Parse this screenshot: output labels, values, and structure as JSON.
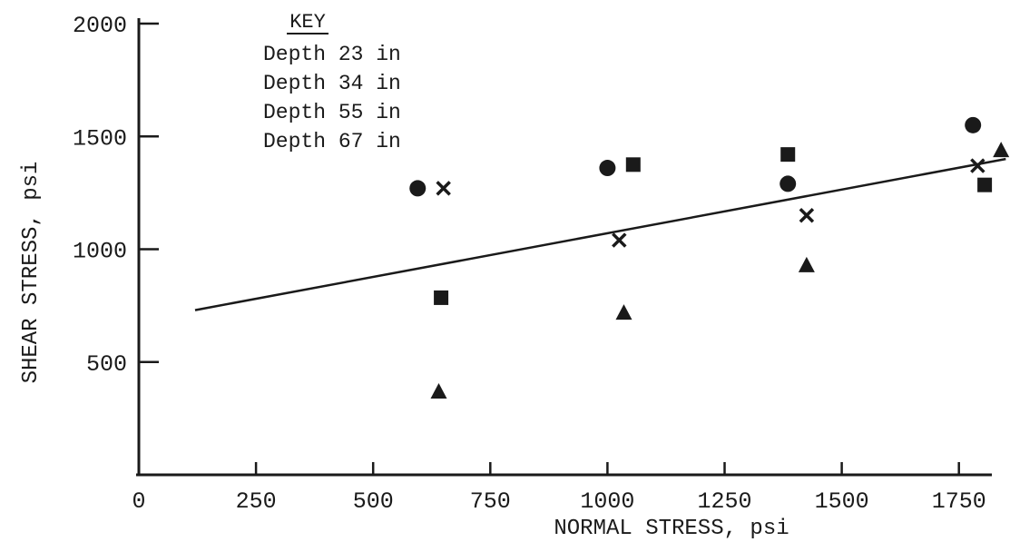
{
  "chart_data": {
    "type": "scatter",
    "title": "",
    "xlabel": "NORMAL STRESS, psi",
    "ylabel": "SHEAR STRESS, psi",
    "xlim": [
      0,
      1850
    ],
    "ylim": [
      0,
      2000
    ],
    "x_ticks": [
      "0",
      "250",
      "500",
      "750",
      "1000",
      "1250",
      "1500",
      "1750"
    ],
    "y_ticks": [
      "500",
      "1000",
      "1500",
      "2000"
    ],
    "grid": false,
    "legend": {
      "title": "KEY",
      "position": "top-left",
      "entries": [
        "Depth 23 in",
        "Depth 34 in",
        "Depth 55 in",
        "Depth 67 in"
      ]
    },
    "series": [
      {
        "marker": "circle",
        "x": [
          595,
          1000,
          1385,
          1780
        ],
        "y": [
          1270,
          1360,
          1290,
          1550
        ]
      },
      {
        "marker": "x",
        "x": [
          650,
          1025,
          1425,
          1790
        ],
        "y": [
          1270,
          1040,
          1150,
          1370
        ]
      },
      {
        "marker": "square",
        "x": [
          645,
          1055,
          1385,
          1805
        ],
        "y": [
          785,
          1375,
          1420,
          1285
        ]
      },
      {
        "marker": "triangle",
        "x": [
          640,
          1035,
          1425,
          1840
        ],
        "y": [
          370,
          720,
          930,
          1440
        ]
      }
    ],
    "fit_line": {
      "x": [
        120,
        1850
      ],
      "y": [
        730,
        1400
      ]
    },
    "colors": {
      "ink": "#1a1a1a",
      "background": "#ffffff"
    }
  }
}
